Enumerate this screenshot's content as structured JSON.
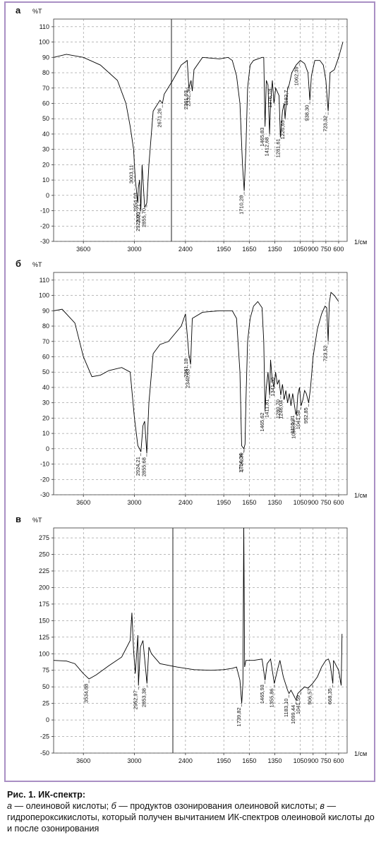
{
  "chart_data": [
    {
      "type": "line",
      "panel": "а",
      "ylabel": "%T",
      "xlabel": "1/см",
      "color": "#000000",
      "grid": true,
      "xlim": [
        3950,
        500
      ],
      "xticks": [
        3600,
        3000,
        2400,
        1950,
        1650,
        1350,
        1050,
        900,
        750,
        600
      ],
      "ylim": [
        -30,
        115
      ],
      "yticks": [
        -30,
        -20,
        -10,
        0,
        10,
        20,
        30,
        40,
        50,
        60,
        70,
        80,
        90,
        100,
        110
      ],
      "x": [
        3950,
        3800,
        3600,
        3400,
        3200,
        3100,
        3050,
        3010,
        2990,
        2960,
        2954,
        2940,
        2925,
        2910,
        2880,
        2855,
        2830,
        2780,
        2700,
        2671,
        2650,
        2550,
        2450,
        2380,
        2360,
        2335,
        2320,
        2300,
        2200,
        2000,
        1900,
        1850,
        1800,
        1760,
        1730,
        1710,
        1690,
        1670,
        1640,
        1600,
        1500,
        1480,
        1465,
        1450,
        1430,
        1412,
        1400,
        1379,
        1360,
        1340,
        1300,
        1285,
        1260,
        1240,
        1230,
        1200,
        1182,
        1150,
        1100,
        1050,
        1000,
        960,
        938,
        920,
        880,
        820,
        780,
        750,
        723,
        700,
        650,
        600,
        550
      ],
      "values": [
        90,
        92,
        90,
        85,
        75,
        60,
        45,
        30,
        10,
        -5,
        5,
        10,
        -10,
        20,
        -8,
        -5,
        20,
        55,
        62,
        60,
        66,
        75,
        85,
        88,
        70,
        75,
        68,
        82,
        90,
        89,
        90,
        88,
        78,
        60,
        20,
        3,
        30,
        70,
        85,
        88,
        90,
        90,
        45,
        75,
        72,
        40,
        60,
        75,
        60,
        70,
        65,
        38,
        55,
        60,
        50,
        70,
        72,
        80,
        85,
        88,
        86,
        80,
        62,
        78,
        88,
        88,
        85,
        75,
        55,
        80,
        82,
        90,
        100
      ],
      "annotations": [
        {
          "value": 3003.11,
          "label": "3003,11"
        },
        {
          "value": 2954.03,
          "label": "2954,03"
        },
        {
          "value": 2923.9,
          "label": "2923,90"
        },
        {
          "value": 2921.21,
          "label": "2921,21"
        },
        {
          "value": 2855.7,
          "label": "2855,70"
        },
        {
          "value": 2671.26,
          "label": "2671,26"
        },
        {
          "value": 2361.93,
          "label": "2361,93"
        },
        {
          "value": 2332.3,
          "label": "2332,30"
        },
        {
          "value": 1710.28,
          "label": "1710,28"
        },
        {
          "value": 1465.83,
          "label": "1465,83"
        },
        {
          "value": 1412.68,
          "label": "1412,68"
        },
        {
          "value": 1376.18,
          "label": "1376,18"
        },
        {
          "value": 1281.61,
          "label": "1281,61"
        },
        {
          "value": 1226.65,
          "label": "1226,65"
        },
        {
          "value": 1182.7,
          "label": "1182,7"
        },
        {
          "value": 1062.39,
          "label": "1062,39"
        },
        {
          "value": 938.3,
          "label": "938,30"
        },
        {
          "value": 723.32,
          "label": "723,32"
        }
      ]
    },
    {
      "type": "line",
      "panel": "б",
      "ylabel": "%T",
      "xlabel": "1/см",
      "color": "#000000",
      "grid": true,
      "xlim": [
        3950,
        500
      ],
      "xticks": [
        3600,
        3000,
        2400,
        1950,
        1650,
        1350,
        1050,
        900,
        750,
        600
      ],
      "ylim": [
        -30,
        115
      ],
      "yticks": [
        -30,
        -20,
        -10,
        0,
        10,
        20,
        30,
        40,
        50,
        60,
        70,
        80,
        90,
        100,
        110
      ],
      "x": [
        3950,
        3850,
        3700,
        3600,
        3500,
        3400,
        3300,
        3150,
        3050,
        3000,
        2960,
        2940,
        2924,
        2900,
        2880,
        2855,
        2830,
        2780,
        2700,
        2600,
        2450,
        2400,
        2361,
        2340,
        2320,
        2200,
        2000,
        1850,
        1800,
        1760,
        1740,
        1714,
        1700,
        1690,
        1670,
        1640,
        1600,
        1550,
        1500,
        1480,
        1465,
        1450,
        1430,
        1411,
        1400,
        1380,
        1360,
        1341,
        1320,
        1300,
        1280,
        1260,
        1240,
        1220,
        1200,
        1180,
        1160,
        1140,
        1110,
        1095,
        1080,
        1060,
        1041,
        1020,
        1000,
        980,
        952,
        930,
        900,
        850,
        800,
        760,
        740,
        723,
        710,
        690,
        650,
        600
      ],
      "values": [
        90,
        91,
        82,
        60,
        47,
        48,
        51,
        53,
        50,
        20,
        2,
        0,
        -2,
        15,
        18,
        -3,
        30,
        62,
        68,
        70,
        80,
        88,
        62,
        55,
        85,
        89,
        90,
        90,
        85,
        50,
        2,
        0,
        3,
        30,
        70,
        85,
        93,
        96,
        92,
        70,
        25,
        40,
        50,
        35,
        58,
        45,
        40,
        50,
        42,
        45,
        35,
        42,
        32,
        38,
        30,
        36,
        28,
        36,
        25,
        22,
        35,
        40,
        28,
        32,
        38,
        36,
        30,
        40,
        60,
        78,
        88,
        93,
        92,
        70,
        95,
        102,
        100,
        96
      ],
      "annotations": [
        {
          "value": 2924.21,
          "label": "2924,21"
        },
        {
          "value": 2855.68,
          "label": "2855,68"
        },
        {
          "value": 2361.18,
          "label": "2361,18"
        },
        {
          "value": 2340.63,
          "label": "2340,63"
        },
        {
          "value": 1714.04,
          "label": "1714,04"
        },
        {
          "value": 1710.39,
          "label": "1710,39"
        },
        {
          "value": 1465.62,
          "label": "1465,62"
        },
        {
          "value": 1411.81,
          "label": "1411,81"
        },
        {
          "value": 1341.3,
          "label": "1341,30"
        },
        {
          "value": 1280.7,
          "label": "1280,70"
        },
        {
          "value": 1246.04,
          "label": "1246,04"
        },
        {
          "value": 1110.31,
          "label": "1110,31"
        },
        {
          "value": 1095.59,
          "label": "1095,59"
        },
        {
          "value": 1041.58,
          "label": "1041,58"
        },
        {
          "value": 952.85,
          "label": "952,85"
        },
        {
          "value": 723.52,
          "label": "723,52"
        }
      ]
    },
    {
      "type": "line",
      "panel": "в",
      "ylabel": "%T",
      "xlabel": "1/см",
      "color": "#000000",
      "grid": true,
      "xlim": [
        3950,
        500
      ],
      "xticks": [
        3600,
        3000,
        2400,
        1950,
        1650,
        1350,
        1050,
        900,
        750,
        600
      ],
      "ylim": [
        -50,
        290
      ],
      "yticks": [
        -50,
        -25,
        0,
        25,
        50,
        75,
        100,
        125,
        150,
        175,
        200,
        225,
        250,
        275
      ],
      "x": [
        3950,
        3800,
        3700,
        3600,
        3534,
        3450,
        3300,
        3150,
        3050,
        3030,
        3010,
        2990,
        2960,
        2953,
        2930,
        2900,
        2853,
        2830,
        2800,
        2700,
        2500,
        2300,
        2100,
        1950,
        1850,
        1800,
        1760,
        1739,
        1725,
        1715,
        1705,
        1690,
        1600,
        1500,
        1465,
        1440,
        1400,
        1356,
        1320,
        1290,
        1250,
        1200,
        1183,
        1160,
        1099,
        1080,
        1041,
        1000,
        960,
        906,
        850,
        800,
        750,
        720,
        700,
        668,
        660,
        600,
        570,
        560
      ],
      "values": [
        90,
        89,
        85,
        70,
        62,
        68,
        82,
        95,
        120,
        162,
        105,
        70,
        128,
        52,
        110,
        120,
        55,
        110,
        100,
        85,
        80,
        76,
        75,
        76,
        78,
        80,
        60,
        25,
        55,
        295,
        80,
        90,
        90,
        92,
        60,
        85,
        92,
        55,
        75,
        90,
        65,
        45,
        40,
        45,
        30,
        40,
        45,
        50,
        48,
        55,
        65,
        80,
        90,
        92,
        85,
        55,
        90,
        75,
        52,
        130
      ],
      "annotations": [
        {
          "value": 3534.88,
          "label": "3534,88"
        },
        {
          "value": 2952.97,
          "label": "2952,97"
        },
        {
          "value": 2853.38,
          "label": "2853,38"
        },
        {
          "value": 1739.82,
          "label": "1739,82"
        },
        {
          "value": 1465.93,
          "label": "1465,93"
        },
        {
          "value": 1355.86,
          "label": "1355,86"
        },
        {
          "value": 1183.1,
          "label": "1183,10"
        },
        {
          "value": 1099.44,
          "label": "1099,44"
        },
        {
          "value": 1041.59,
          "label": "1041,59"
        },
        {
          "value": 906.57,
          "label": "906,57"
        },
        {
          "value": 668.35,
          "label": "668,35"
        }
      ]
    }
  ],
  "caption": {
    "title": "Рис. 1. ИК-спектр:",
    "items": [
      {
        "letter": "а",
        "text": "— олеиновой кислоты;"
      },
      {
        "letter": "б",
        "text": "— продуктов озонирования олеиновой кислоты;"
      },
      {
        "letter": "в",
        "text": "— гидропероксикислоты, который получен вычитанием ИК-спектров олеиновой кислоты до и после озонирования"
      }
    ]
  }
}
